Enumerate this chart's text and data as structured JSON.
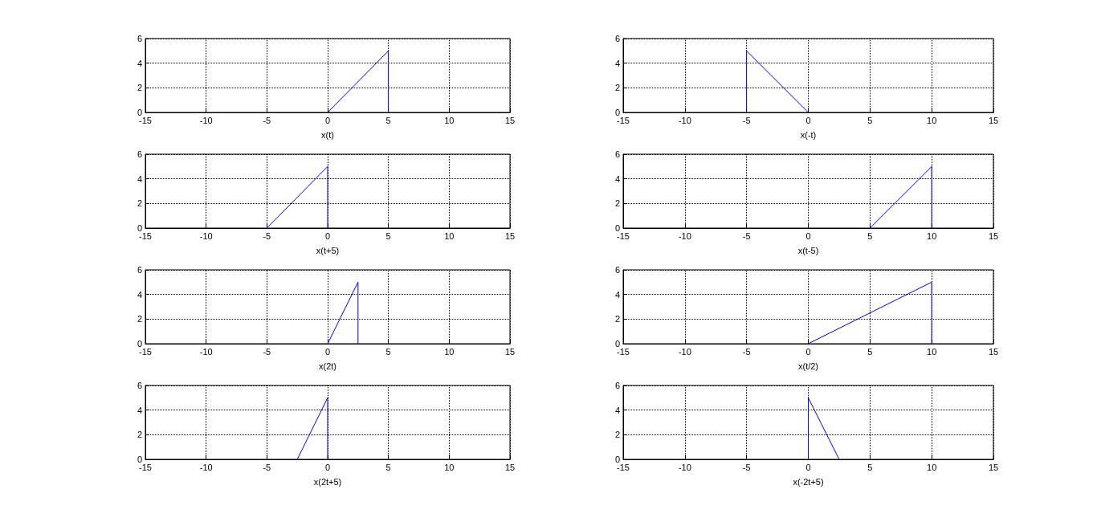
{
  "chart_data": [
    {
      "type": "line",
      "xlabel": "x(t)",
      "x": [
        0,
        5,
        5
      ],
      "values": [
        0,
        5,
        0
      ],
      "color": "#0000ff",
      "marker": "none",
      "xlim": [
        -15,
        15
      ],
      "xticks": [
        -15,
        -10,
        -5,
        0,
        5,
        10,
        15
      ],
      "ylim": [
        0,
        6
      ],
      "yticks": [
        0,
        2,
        4,
        6
      ],
      "grid": true
    },
    {
      "type": "line",
      "xlabel": "x(-t)",
      "x": [
        -5,
        -5,
        0
      ],
      "values": [
        0,
        5,
        0
      ],
      "color": "#0000ff",
      "marker": "none",
      "xlim": [
        -15,
        15
      ],
      "xticks": [
        -15,
        -10,
        -5,
        0,
        5,
        10,
        15
      ],
      "ylim": [
        0,
        6
      ],
      "yticks": [
        0,
        2,
        4,
        6
      ],
      "grid": true
    },
    {
      "type": "line",
      "xlabel": "x(t+5)",
      "x": [
        -5,
        0,
        0
      ],
      "values": [
        0,
        5,
        0
      ],
      "color": "#0000ff",
      "marker": "none",
      "xlim": [
        -15,
        15
      ],
      "xticks": [
        -15,
        -10,
        -5,
        0,
        5,
        10,
        15
      ],
      "ylim": [
        0,
        6
      ],
      "yticks": [
        0,
        2,
        4,
        6
      ],
      "grid": true
    },
    {
      "type": "line",
      "xlabel": "x(t-5)",
      "x": [
        5,
        10,
        10
      ],
      "values": [
        0,
        5,
        0
      ],
      "color": "#0000ff",
      "marker": "none",
      "xlim": [
        -15,
        15
      ],
      "xticks": [
        -15,
        -10,
        -5,
        0,
        5,
        10,
        15
      ],
      "ylim": [
        0,
        6
      ],
      "yticks": [
        0,
        2,
        4,
        6
      ],
      "grid": true
    },
    {
      "type": "line",
      "xlabel": "x(2t)",
      "x": [
        0,
        2.5,
        2.5
      ],
      "values": [
        0,
        5,
        0
      ],
      "color": "#0000ff",
      "marker": "none",
      "xlim": [
        -15,
        15
      ],
      "xticks": [
        -15,
        -10,
        -5,
        0,
        5,
        10,
        15
      ],
      "ylim": [
        0,
        6
      ],
      "yticks": [
        0,
        2,
        4,
        6
      ],
      "grid": true
    },
    {
      "type": "line",
      "xlabel": "x(t/2)",
      "x": [
        0,
        10,
        10
      ],
      "values": [
        0,
        5,
        0
      ],
      "color": "#0000ff",
      "marker": "none",
      "xlim": [
        -15,
        15
      ],
      "xticks": [
        -15,
        -10,
        -5,
        0,
        5,
        10,
        15
      ],
      "ylim": [
        0,
        6
      ],
      "yticks": [
        0,
        2,
        4,
        6
      ],
      "grid": true
    },
    {
      "type": "line",
      "xlabel": "x(2t+5)",
      "x": [
        -2.5,
        0,
        0
      ],
      "values": [
        0,
        5,
        0
      ],
      "color": "#0000ff",
      "marker": "none",
      "xlim": [
        -15,
        15
      ],
      "xticks": [
        -15,
        -10,
        -5,
        0,
        5,
        10,
        15
      ],
      "ylim": [
        0,
        6
      ],
      "yticks": [
        0,
        2,
        4,
        6
      ],
      "grid": true
    },
    {
      "type": "line",
      "xlabel": "x(-2t+5)",
      "x": [
        0,
        0,
        2.5
      ],
      "values": [
        0,
        5,
        0
      ],
      "color": "#0000ff",
      "marker": "none",
      "xlim": [
        -15,
        15
      ],
      "xticks": [
        -15,
        -10,
        -5,
        0,
        5,
        10,
        15
      ],
      "ylim": [
        0,
        6
      ],
      "yticks": [
        0,
        2,
        4,
        6
      ],
      "grid": true
    }
  ]
}
